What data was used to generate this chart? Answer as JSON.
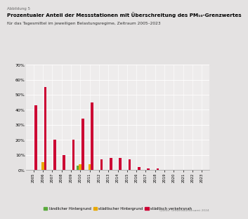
{
  "years": [
    2005,
    2006,
    2007,
    2008,
    2009,
    2010,
    2011,
    2012,
    2013,
    2014,
    2015,
    2016,
    2017,
    2018,
    2019,
    2020,
    2021,
    2022,
    2023
  ],
  "laendlich": [
    0,
    0,
    0,
    0,
    0,
    3,
    0,
    0,
    0,
    0,
    0,
    0,
    0,
    0,
    0,
    0,
    0,
    0,
    0
  ],
  "staedtisch": [
    0,
    5,
    0,
    0,
    0,
    4,
    4,
    0,
    0,
    0,
    0,
    0,
    0,
    0,
    0,
    0,
    0,
    0,
    0
  ],
  "verkehr": [
    43,
    55,
    20,
    10,
    20,
    34,
    45,
    7,
    8,
    8,
    7,
    2,
    1,
    1,
    0,
    0,
    0,
    0,
    0
  ],
  "color_laendlich": "#5aaa3c",
  "color_staedtisch": "#e8a800",
  "color_verkehr": "#cc0033",
  "ylim": [
    0,
    70
  ],
  "yticks": [
    0,
    10,
    20,
    30,
    40,
    50,
    60,
    70
  ],
  "ytick_labels": [
    "0%",
    "10%",
    "20%",
    "30%",
    "40%",
    "50%",
    "60%",
    "70%"
  ],
  "title_abbildung": "Abbildung 5",
  "title_main": "Prozentualer Anteil der Messstationen mit Überschreitung des PM₁₀-Grenzwertes",
  "title_sub": "für das Tagesmittel im jeweiligen Belastungsregime, Zeitraum 2005–2023",
  "legend_laendlich": "ländlicher Hintergrund",
  "legend_staedtisch": "städtischer Hintergrund",
  "legend_verkehr": "städtisch verkehrsnah",
  "source": "Quelle: Umweltbundesamt 2024",
  "bg_color": "#eeecec",
  "fig_bg": "#e4e2e2"
}
